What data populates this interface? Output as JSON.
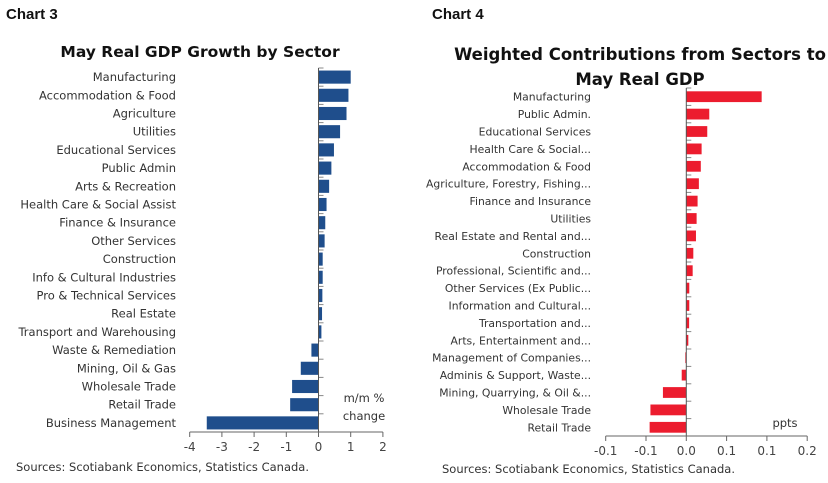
{
  "chart_data": [
    {
      "type": "bar",
      "orientation": "horizontal",
      "label": "Chart 3",
      "title": "May Real GDP Growth by Sector",
      "unit_label": [
        "m/m %",
        "change"
      ],
      "color": "#1f4e8c",
      "xlim": [
        -4,
        2
      ],
      "xticks": [
        "-4",
        "-3",
        "-2",
        "-1",
        "0",
        "1",
        "2"
      ],
      "xtick_values": [
        -4,
        -3,
        -2,
        -1,
        0,
        1,
        2
      ],
      "categories": [
        "Manufacturing",
        "Accommodation & Food",
        "Agriculture",
        "Utilities",
        "Educational Services",
        "Public Admin",
        "Arts & Recreation",
        "Health Care & Social Assist",
        "Finance & Insurance",
        "Other Services",
        "Construction",
        "Info & Cultural Industries",
        "Pro & Technical Services",
        "Real Estate",
        "Transport and Warehousing",
        "Waste & Remediation",
        "Mining, Oil & Gas",
        "Wholesale Trade",
        "Retail Trade",
        "Business Management"
      ],
      "values": [
        1.0,
        0.93,
        0.87,
        0.67,
        0.48,
        0.4,
        0.33,
        0.25,
        0.21,
        0.19,
        0.13,
        0.13,
        0.12,
        0.11,
        0.09,
        -0.22,
        -0.55,
        -0.82,
        -0.88,
        -3.47
      ],
      "source": "Sources: Scotiabank Economics, Statistics Canada."
    },
    {
      "type": "bar",
      "orientation": "horizontal",
      "label": "Chart 4",
      "title": [
        "Weighted Contributions from Sectors to",
        "May Real GDP"
      ],
      "unit_label": [
        "ppts"
      ],
      "color": "#ec1c2e",
      "xlim": [
        -0.1,
        0.15
      ],
      "xticks": [
        "-0.1",
        "-0.1",
        "0.0",
        "0.1",
        "0.1",
        "0.2"
      ],
      "xtick_values": [
        -0.1,
        -0.05,
        0,
        0.05,
        0.1,
        0.15
      ],
      "categories": [
        "Manufacturing",
        "Public Admin.",
        "Educational Services",
        "Health Care & Social...",
        "Accommodation & Food",
        "Agriculture, Forestry, Fishing...",
        "Finance and Insurance",
        "Utilities",
        "Real Estate and Rental and...",
        "Construction",
        "Professional, Scientific and...",
        "Other Services (Ex Public...",
        "Information and Cultural...",
        "Transportation and...",
        "Arts, Entertainment and...",
        "Management of Companies...",
        "Adminis & Support, Waste...",
        "Mining, Quarrying, & Oil &...",
        "Wholesale Trade",
        "Retail Trade"
      ],
      "values": [
        0.0935,
        0.0285,
        0.026,
        0.019,
        0.018,
        0.0156,
        0.014,
        0.0128,
        0.012,
        0.0087,
        0.0079,
        0.0037,
        0.0037,
        0.0035,
        0.0025,
        -0.0012,
        -0.0057,
        -0.029,
        -0.0445,
        -0.0455
      ],
      "source": "Sources: Scotiabank Economics, Statistics Canada."
    }
  ]
}
